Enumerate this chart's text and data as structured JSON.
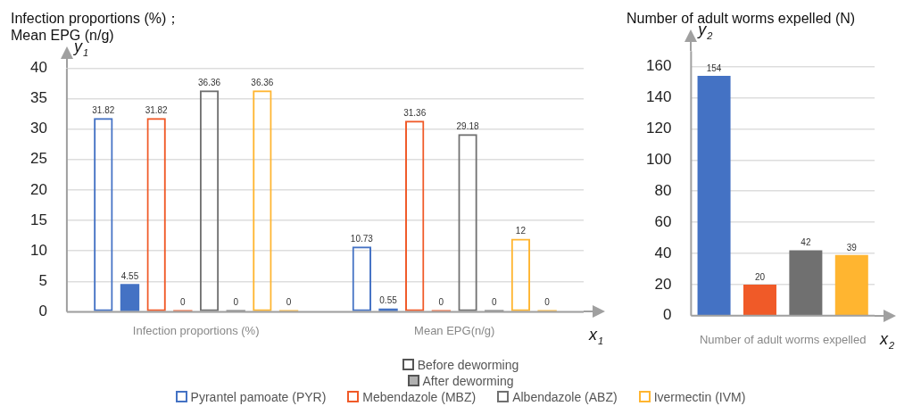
{
  "chart_data": [
    {
      "type": "bar",
      "title": "Infection proportions (%)；\nMean EPG (n/g)",
      "ylabel": "y$_{1}$",
      "xlabel": "x$_{1}$",
      "categories": [
        "Infection proportions (%)",
        "Mean EPG(n/g)"
      ],
      "series": [
        {
          "name": "Pyrantel pamoate (PYR)",
          "color": "#4472c4",
          "values": [
            31.82,
            10.73
          ]
        },
        {
          "color": "#4472c4",
          "values": [
            4.55,
            0.55
          ]
        },
        {
          "name": "Mebendazole (MBZ)",
          "color": "#f05a28",
          "values": [
            31.82,
            31.36
          ]
        },
        {
          "color": "#f05a28",
          "values": [
            0,
            0
          ]
        },
        {
          "name": "Albendazole (ABZ)",
          "color": "#707070",
          "values": [
            36.36,
            29.18
          ]
        },
        {
          "color": "#707070",
          "values": [
            0,
            0
          ]
        },
        {
          "name": "Ivermectin (IVM)",
          "color": "#ffb530",
          "values": [
            36.36,
            12
          ]
        },
        {
          "color": "#ffb530",
          "values": [
            0,
            0
          ]
        }
      ],
      "annotations": [
        "Before deworming",
        "After deworming"
      ],
      "ylim": [
        0,
        40
      ],
      "yticks": [
        0,
        5,
        10,
        15,
        20,
        25,
        30,
        35,
        40
      ],
      "grid": "y",
      "legend": "bottom",
      "data_labels": true
    },
    {
      "type": "bar",
      "title": "Number of adult worms expelled (N)",
      "ylabel": "y$_{2}$",
      "xlabel": "Number of adult worms expelled",
      "annotations": [
        "x$_{2}$"
      ],
      "categories": [
        null,
        null,
        null,
        null
      ],
      "values": [
        154,
        20,
        42,
        39
      ],
      "colors": [
        "#4472c4",
        "#f05a28",
        "#707070",
        "#ffb530"
      ],
      "ylim": [
        0,
        170
      ],
      "yticks": [
        0,
        20,
        40,
        60,
        80,
        100,
        120,
        140,
        160
      ],
      "grid": "y",
      "data_labels": true
    }
  ]
}
